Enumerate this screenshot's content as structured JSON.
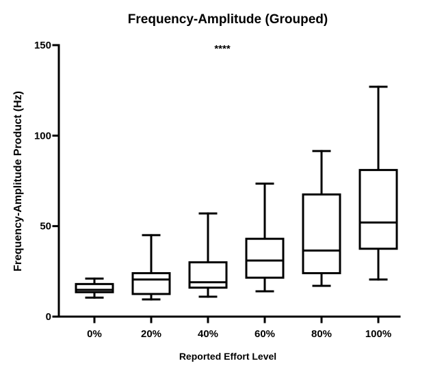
{
  "chart_data": {
    "type": "boxplot",
    "title": "Frequency-Amplitude (Grouped)",
    "xlabel": "Reported Effort Level",
    "ylabel": "Frequency-Amplitude Product (Hz)",
    "ylim": [
      0,
      150
    ],
    "yticks": [
      0,
      50,
      100,
      150
    ],
    "categories": [
      "0%",
      "20%",
      "40%",
      "60%",
      "80%",
      "100%"
    ],
    "boxes": [
      {
        "category": "0%",
        "min": 10.5,
        "q1": 13.5,
        "median": 14.8,
        "q3": 18,
        "max": 21
      },
      {
        "category": "20%",
        "min": 9.5,
        "q1": 12.5,
        "median": 20.5,
        "q3": 24,
        "max": 45
      },
      {
        "category": "40%",
        "min": 11,
        "q1": 16,
        "median": 19,
        "q3": 30,
        "max": 57
      },
      {
        "category": "60%",
        "min": 14,
        "q1": 21.5,
        "median": 31,
        "q3": 43,
        "max": 73.5
      },
      {
        "category": "80%",
        "min": 17,
        "q1": 24,
        "median": 36.5,
        "q3": 67.5,
        "max": 91.5
      },
      {
        "category": "100%",
        "min": 20.5,
        "q1": 37.5,
        "median": 52,
        "q3": 81,
        "max": 127
      }
    ],
    "annotation": "****",
    "grid": false,
    "legend": "none",
    "line_color": "#000000"
  }
}
